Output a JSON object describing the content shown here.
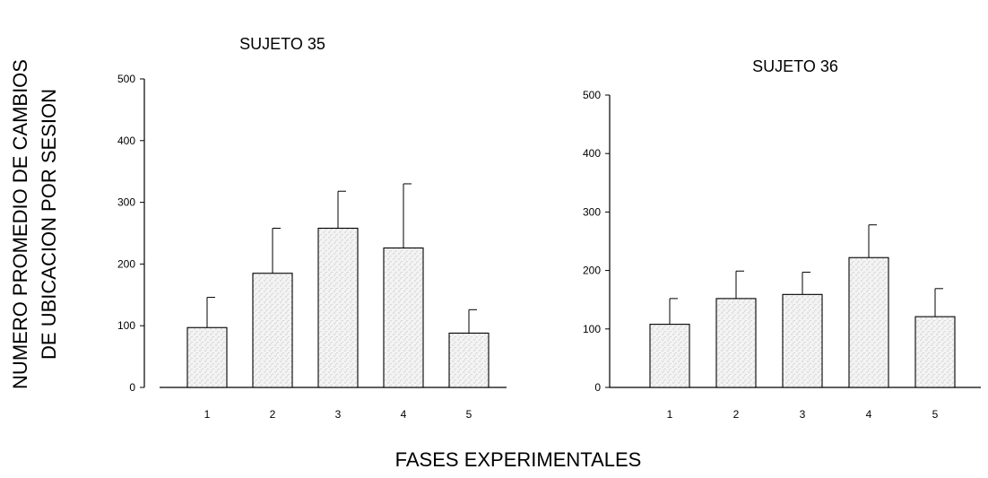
{
  "figure": {
    "ylabel_line1": "NUMERO PROMEDIO DE CAMBIOS",
    "ylabel_line2": "DE UBICACION POR SESION",
    "xlabel": "FASES EXPERIMENTALES"
  },
  "chart_data": [
    {
      "type": "bar",
      "title": "SUJETO 35",
      "categories": [
        "1",
        "2",
        "3",
        "4",
        "5"
      ],
      "values": [
        97,
        185,
        258,
        226,
        88
      ],
      "error_upper": [
        146,
        258,
        318,
        330,
        126
      ],
      "ylim": [
        0,
        500
      ],
      "yticks": [
        "0",
        "100",
        "200",
        "300",
        "400",
        "500"
      ],
      "xlabel": "",
      "ylabel": "",
      "grid": false,
      "legend": "none",
      "bar_fill": "#eeeeee",
      "bar_stroke": "#000000"
    },
    {
      "type": "bar",
      "title": "SUJETO 36",
      "categories": [
        "1",
        "2",
        "3",
        "4",
        "5"
      ],
      "values": [
        108,
        152,
        159,
        222,
        121
      ],
      "error_upper": [
        152,
        199,
        197,
        278,
        169
      ],
      "ylim": [
        0,
        500
      ],
      "yticks": [
        "0",
        "100",
        "200",
        "300",
        "400",
        "500"
      ],
      "xlabel": "",
      "ylabel": "",
      "grid": false,
      "legend": "none",
      "bar_fill": "#eeeeee",
      "bar_stroke": "#000000"
    }
  ]
}
